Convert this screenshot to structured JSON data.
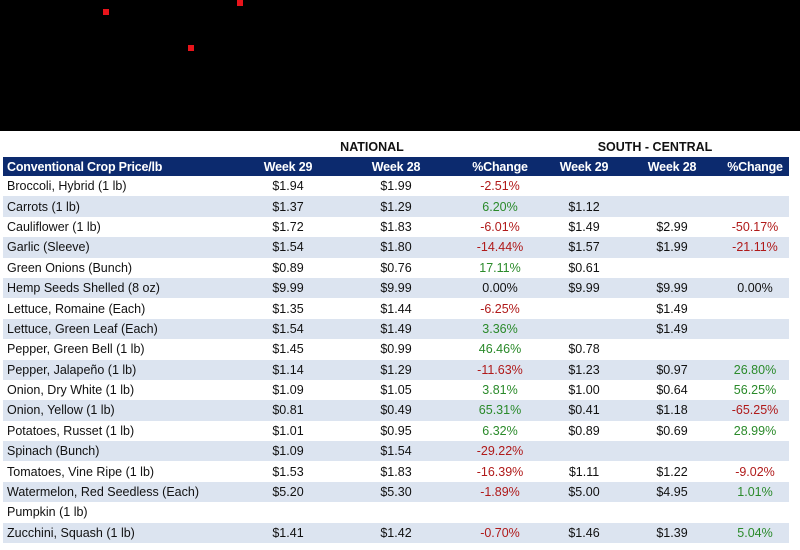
{
  "groups": {
    "national": "NATIONAL",
    "south_central": "SOUTH - CENTRAL"
  },
  "columns": [
    "Conventional Crop Price/lb",
    "Week 29",
    "Week 28",
    "%Change",
    "Week 29",
    "Week 28",
    "%Change"
  ],
  "colors": {
    "header_bg": "#0c2a6e",
    "alt_row": "#dce4f0",
    "negative": "#b01a1a",
    "positive": "#2a8a2a",
    "banner": "#000000",
    "marker": "#e8141b"
  },
  "chart_data": {
    "type": "table",
    "columns": [
      "Conventional Crop Price/lb",
      "Week 29",
      "Week 28",
      "%Change",
      "Week 29",
      "Week 28",
      "%Change"
    ],
    "groups": [
      "NATIONAL",
      "SOUTH - CENTRAL"
    ],
    "rows": [
      [
        "Broccoli, Hybrid (1 lb)",
        "$1.94",
        "$1.99",
        "-2.51%",
        "",
        "",
        ""
      ],
      [
        "Carrots (1 lb)",
        "$1.37",
        "$1.29",
        "6.20%",
        "$1.12",
        "",
        ""
      ],
      [
        "Cauliflower (1 lb)",
        "$1.72",
        "$1.83",
        "-6.01%",
        "$1.49",
        "$2.99",
        "-50.17%"
      ],
      [
        "Garlic (Sleeve)",
        "$1.54",
        "$1.80",
        "-14.44%",
        "$1.57",
        "$1.99",
        "-21.11%"
      ],
      [
        "Green Onions (Bunch)",
        "$0.89",
        "$0.76",
        "17.11%",
        "$0.61",
        "",
        ""
      ],
      [
        "Hemp Seeds Shelled (8 oz)",
        "$9.99",
        "$9.99",
        "0.00%",
        "$9.99",
        "$9.99",
        "0.00%"
      ],
      [
        "Lettuce, Romaine (Each)",
        "$1.35",
        "$1.44",
        "-6.25%",
        "",
        "$1.49",
        ""
      ],
      [
        "Lettuce, Green Leaf (Each)",
        "$1.54",
        "$1.49",
        "3.36%",
        "",
        "$1.49",
        ""
      ],
      [
        "Pepper, Green Bell (1 lb)",
        "$1.45",
        "$0.99",
        "46.46%",
        "$0.78",
        "",
        ""
      ],
      [
        "Pepper, Jalapeño (1 lb)",
        "$1.14",
        "$1.29",
        "-11.63%",
        "$1.23",
        "$0.97",
        "26.80%"
      ],
      [
        "Onion, Dry White (1 lb)",
        "$1.09",
        "$1.05",
        "3.81%",
        "$1.00",
        "$0.64",
        "56.25%"
      ],
      [
        "Onion, Yellow (1 lb)",
        "$0.81",
        "$0.49",
        "65.31%",
        "$0.41",
        "$1.18",
        "-65.25%"
      ],
      [
        "Potatoes, Russet (1 lb)",
        "$1.01",
        "$0.95",
        "6.32%",
        "$0.89",
        "$0.69",
        "28.99%"
      ],
      [
        "Spinach (Bunch)",
        "$1.09",
        "$1.54",
        "-29.22%",
        "",
        "",
        ""
      ],
      [
        "Tomatoes, Vine Ripe (1 lb)",
        "$1.53",
        "$1.83",
        "-16.39%",
        "$1.11",
        "$1.22",
        "-9.02%"
      ],
      [
        "Watermelon, Red Seedless (Each)",
        "$5.20",
        "$5.30",
        "-1.89%",
        "$5.00",
        "$4.95",
        "1.01%"
      ],
      [
        "Pumpkin (1 lb)",
        "",
        "",
        "",
        "",
        "",
        ""
      ],
      [
        "Zucchini, Squash (1 lb)",
        "$1.41",
        "$1.42",
        "-0.70%",
        "$1.46",
        "$1.39",
        "5.04%"
      ]
    ]
  }
}
